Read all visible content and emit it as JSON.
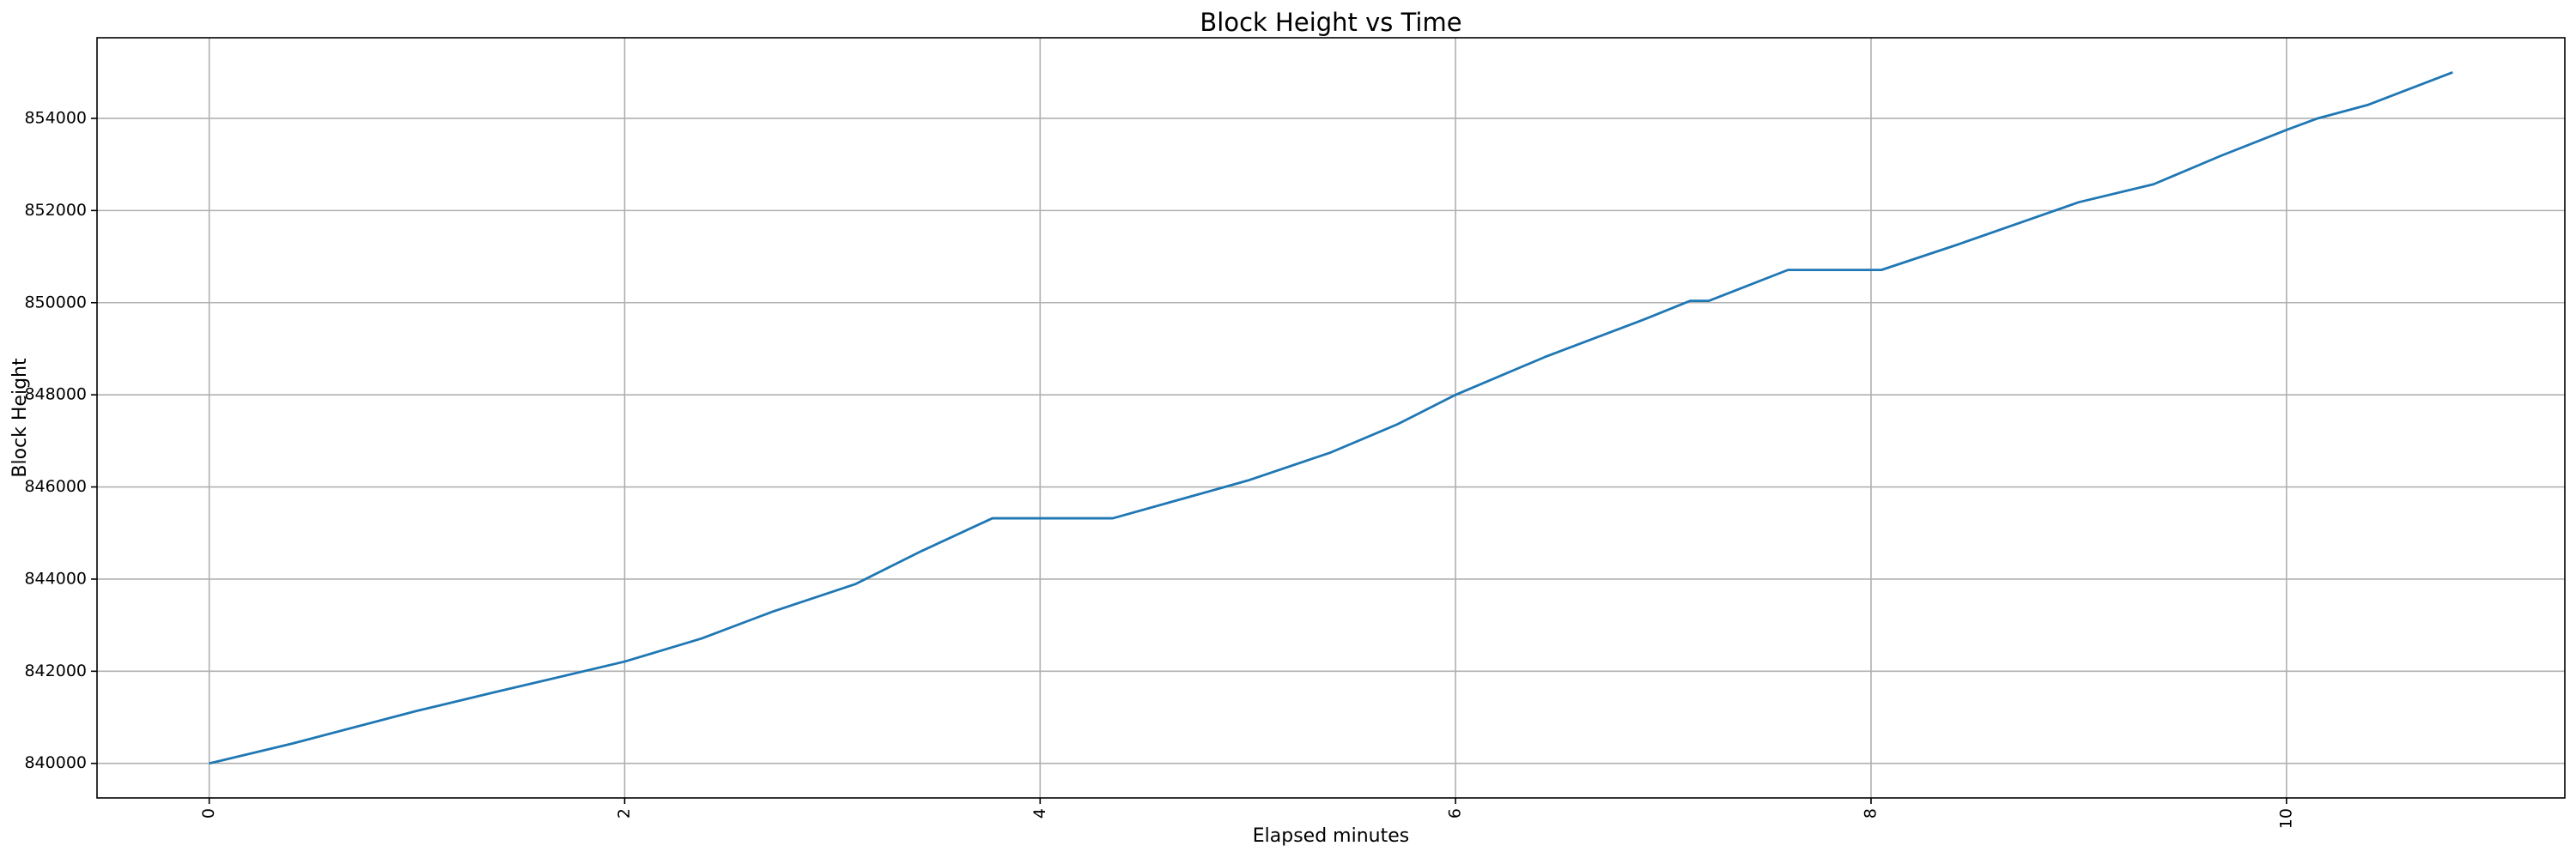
{
  "chart_data": {
    "type": "line",
    "title": "Block Height vs Time",
    "x_label": "Elapsed minutes",
    "y_label": "Block Height",
    "x": [
      0,
      0.4,
      1.0,
      1.37,
      2.0,
      2.37,
      2.71,
      3.11,
      3.43,
      3.77,
      4.35,
      5.0,
      5.4,
      5.72,
      6.0,
      6.43,
      6.91,
      7.13,
      7.22,
      7.6,
      8.05,
      8.41,
      9.0,
      9.36,
      9.68,
      10.0,
      10.15,
      10.39,
      10.8
    ],
    "series": [
      {
        "name": "Block Height",
        "color": "#1f77b4",
        "values": [
          840000,
          840430,
          841140,
          841540,
          842210,
          842710,
          843290,
          843890,
          844610,
          845320,
          845320,
          846140,
          846750,
          847360,
          848000,
          848820,
          849640,
          850040,
          850040,
          850710,
          850710,
          851250,
          852180,
          852570,
          853180,
          853750,
          854000,
          854290,
          855000
        ]
      }
    ],
    "xlim": [
      -0.54,
      11.34
    ],
    "ylim": [
      839250,
      855750
    ],
    "xticks": [
      0,
      2,
      4,
      6,
      8,
      10
    ],
    "yticks": [
      840000,
      842000,
      844000,
      846000,
      848000,
      850000,
      852000,
      854000
    ],
    "grid": true
  }
}
